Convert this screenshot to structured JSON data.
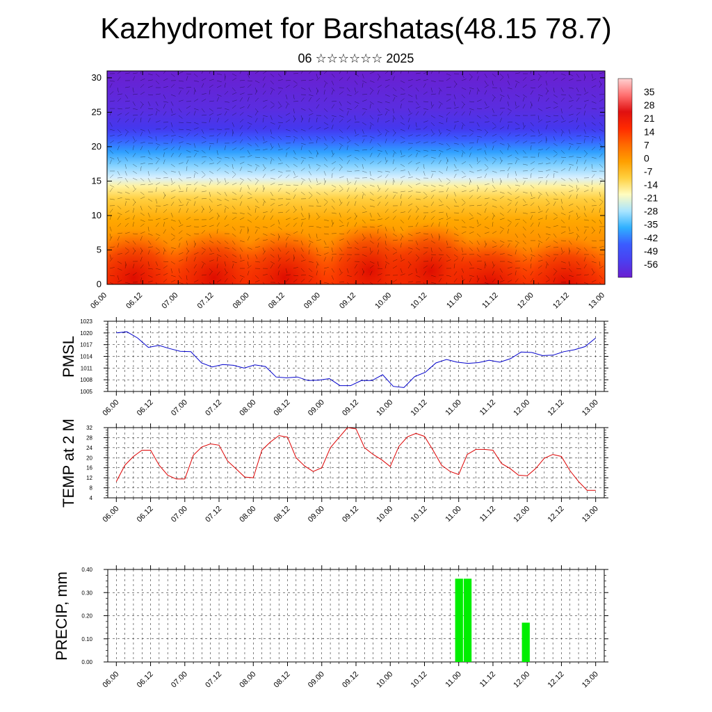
{
  "title": "Kazhydromet for Barshatas(48.15 78.7)",
  "subtitle": "06 ☆☆☆☆☆☆ 2025",
  "chart_data": [
    {
      "type": "heatmap",
      "name": "cross-section",
      "ylim": [
        0,
        31
      ],
      "yticks": [
        0,
        5,
        10,
        15,
        20,
        25,
        30
      ],
      "xlim": [
        0,
        28
      ],
      "xtick_labels": [
        "06.00",
        "06.12",
        "07.00",
        "07.12",
        "08.00",
        "08.12",
        "09.00",
        "09.12",
        "10.00",
        "10.12",
        "11.00",
        "11.12",
        "12.00",
        "12.12",
        "13.00"
      ],
      "colorbar_labels": [
        "35",
        "28",
        "21",
        "14",
        "7",
        "0",
        "-7",
        "-14",
        "-21",
        "-28",
        "-35",
        "-42",
        "-49",
        "-56"
      ],
      "colorbar_range": [
        -63,
        42
      ],
      "colormap": [
        "#6a1fd0",
        "#4b3ff0",
        "#3a5cff",
        "#2fb0ff",
        "#a8e4ff",
        "#fffcc0",
        "#ffd040",
        "#ffa000",
        "#ff6a00",
        "#ff2a00",
        "#e01010",
        "#ff7070",
        "#ffd0d0"
      ]
    },
    {
      "type": "line",
      "ylabel": "PMSL",
      "ylim": [
        1005,
        1023
      ],
      "yticks": [
        1005,
        1008,
        1011,
        1014,
        1017,
        1020,
        1023
      ],
      "xlim": [
        -0.5,
        28.5
      ],
      "color": "#0000cc",
      "xtick_labels": [
        "06.00",
        "06.12",
        "07.00",
        "07.12",
        "08.00",
        "08.12",
        "09.00",
        "09.12",
        "10.00",
        "10.12",
        "11.00",
        "11.12",
        "12.00",
        "12.12",
        "13.00"
      ],
      "values": [
        1020.0,
        1020.3,
        1018.7,
        1016.3,
        1016.8,
        1016.0,
        1015.3,
        1015.2,
        1012.3,
        1011.3,
        1011.9,
        1011.7,
        1011.0,
        1011.8,
        1011.4,
        1008.7,
        1008.5,
        1008.7,
        1007.8,
        1007.9,
        1008.3,
        1006.5,
        1006.5,
        1007.8,
        1007.8,
        1009.3,
        1006.3,
        1006.0,
        1008.8,
        1009.9,
        1012.3,
        1013.2,
        1012.5,
        1012.2,
        1012.4,
        1013.0,
        1012.5,
        1013.4,
        1015.1,
        1015.0,
        1014.2,
        1014.3,
        1015.2,
        1015.7,
        1016.5,
        1018.7
      ]
    },
    {
      "type": "line",
      "ylabel": "TEMP at 2 M",
      "ylim": [
        4,
        32
      ],
      "yticks": [
        4,
        8,
        12,
        16,
        20,
        24,
        28,
        32
      ],
      "xlim": [
        -0.5,
        28.5
      ],
      "color": "#dd0000",
      "xtick_labels": [
        "06.00",
        "06.12",
        "07.00",
        "07.12",
        "08.00",
        "08.12",
        "09.00",
        "09.12",
        "10.00",
        "10.12",
        "11.00",
        "11.12",
        "12.00",
        "12.12",
        "13.00"
      ],
      "values": [
        10.5,
        17.0,
        20.5,
        23.0,
        23.0,
        17.0,
        13.0,
        11.5,
        11.5,
        21.0,
        24.3,
        25.5,
        25.0,
        18.7,
        15.5,
        12.3,
        12.0,
        23.0,
        26.3,
        28.8,
        28.2,
        20.0,
        16.7,
        14.5,
        16.0,
        24.0,
        28.0,
        32.0,
        31.5,
        24.0,
        21.3,
        19.2,
        16.5,
        24.5,
        28.3,
        29.7,
        28.5,
        23.0,
        17.0,
        14.5,
        13.3,
        21.3,
        23.3,
        23.3,
        23.0,
        17.7,
        15.7,
        13.0,
        12.8,
        15.7,
        19.8,
        21.3,
        20.5,
        14.8,
        10.5,
        7.0,
        7.0
      ]
    },
    {
      "type": "bar",
      "ylabel": "PRECIP, mm",
      "ylim": [
        0,
        0.4
      ],
      "yticks": [
        "0.00",
        "0.10",
        "0.20",
        "0.30",
        "0.40"
      ],
      "xlim": [
        -0.5,
        28.5
      ],
      "color": "#00ee00",
      "xtick_labels": [
        "06.00",
        "06.12",
        "07.00",
        "07.12",
        "08.00",
        "08.12",
        "09.00",
        "09.12",
        "10.00",
        "10.12",
        "11.00",
        "11.12",
        "12.00",
        "12.12",
        "13.00"
      ],
      "bars": [
        {
          "x": 20.0,
          "value": 0.36
        },
        {
          "x": 20.5,
          "value": 0.36
        },
        {
          "x": 23.9,
          "value": 0.17
        }
      ]
    }
  ]
}
